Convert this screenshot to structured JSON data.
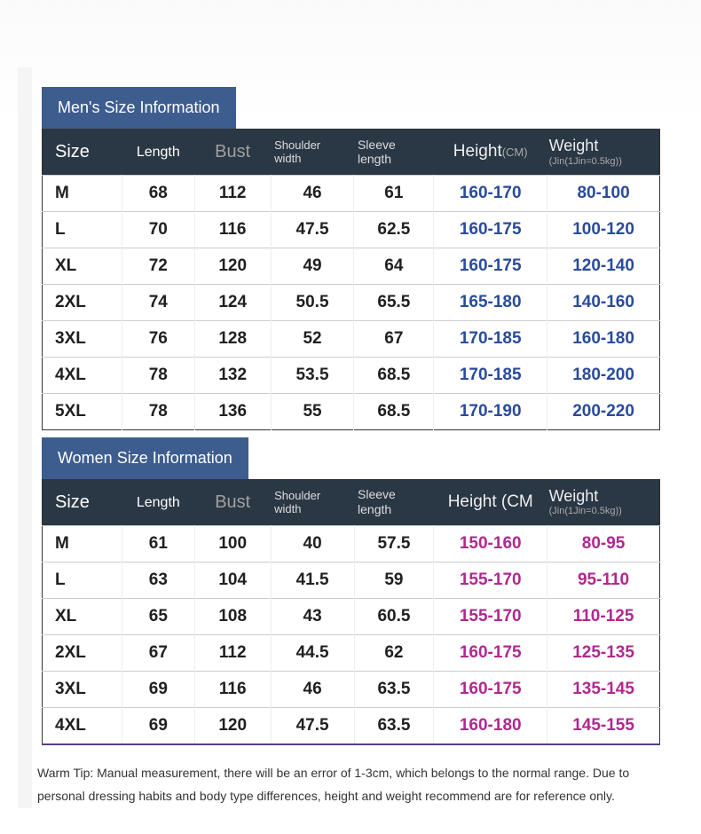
{
  "men": {
    "title": "Men's Size Information",
    "headers": {
      "size": "Size",
      "length": "Length",
      "bust": "Bust",
      "shoulder": "Shoulder width",
      "sleeve": "Sleeve length",
      "height": "Height",
      "height_unit": "(CM)",
      "weight": "Weight",
      "weight_unit": "(Jin(1Jin=0.5kg))"
    },
    "rows": [
      {
        "size": "M",
        "length": "68",
        "bust": "112",
        "shoulder": "46",
        "sleeve": "61",
        "height": "160-170",
        "weight": "80-100"
      },
      {
        "size": "L",
        "length": "70",
        "bust": "116",
        "shoulder": "47.5",
        "sleeve": "62.5",
        "height": "160-175",
        "weight": "100-120"
      },
      {
        "size": "XL",
        "length": "72",
        "bust": "120",
        "shoulder": "49",
        "sleeve": "64",
        "height": "160-175",
        "weight": "120-140"
      },
      {
        "size": "2XL",
        "length": "74",
        "bust": "124",
        "shoulder": "50.5",
        "sleeve": "65.5",
        "height": "165-180",
        "weight": "140-160"
      },
      {
        "size": "3XL",
        "length": "76",
        "bust": "128",
        "shoulder": "52",
        "sleeve": "67",
        "height": "170-185",
        "weight": "160-180"
      },
      {
        "size": "4XL",
        "length": "78",
        "bust": "132",
        "shoulder": "53.5",
        "sleeve": "68.5",
        "height": "170-185",
        "weight": "180-200"
      },
      {
        "size": "5XL",
        "length": "78",
        "bust": "136",
        "shoulder": "55",
        "sleeve": "68.5",
        "height": "170-190",
        "weight": "200-220"
      }
    ],
    "colors": {
      "header_bg": "#2a3744",
      "title_bg": "#3e5d8f",
      "accent": "#2a4b9b"
    }
  },
  "women": {
    "title": "Women Size Information",
    "headers": {
      "size": "Size",
      "length": "Length",
      "bust": "Bust",
      "shoulder": "Shoulder width",
      "sleeve": "Sleeve length",
      "height": "Height (CM",
      "weight": "Weight",
      "weight_unit": "(Jin(1Jin=0.5kg))"
    },
    "rows": [
      {
        "size": "M",
        "length": "61",
        "bust": "100",
        "shoulder": "40",
        "sleeve": "57.5",
        "height": "150-160",
        "weight": "80-95"
      },
      {
        "size": "L",
        "length": "63",
        "bust": "104",
        "shoulder": "41.5",
        "sleeve": "59",
        "height": "155-170",
        "weight": "95-110"
      },
      {
        "size": "XL",
        "length": "65",
        "bust": "108",
        "shoulder": "43",
        "sleeve": "60.5",
        "height": "155-170",
        "weight": "110-125"
      },
      {
        "size": "2XL",
        "length": "67",
        "bust": "112",
        "shoulder": "44.5",
        "sleeve": "62",
        "height": "160-175",
        "weight": "125-135"
      },
      {
        "size": "3XL",
        "length": "69",
        "bust": "116",
        "shoulder": "46",
        "sleeve": "63.5",
        "height": "160-175",
        "weight": "135-145"
      },
      {
        "size": "4XL",
        "length": "69",
        "bust": "120",
        "shoulder": "47.5",
        "sleeve": "63.5",
        "height": "160-180",
        "weight": "145-155"
      }
    ],
    "colors": {
      "header_bg": "#2a3744",
      "title_bg": "#3e5d8f",
      "accent": "#b02890"
    }
  },
  "tip": "Warm Tip: Manual measurement, there will be an error of 1-3cm, which belongs to the normal range. Due to personal dressing habits and body type differences, height and weight recommend are for reference only."
}
